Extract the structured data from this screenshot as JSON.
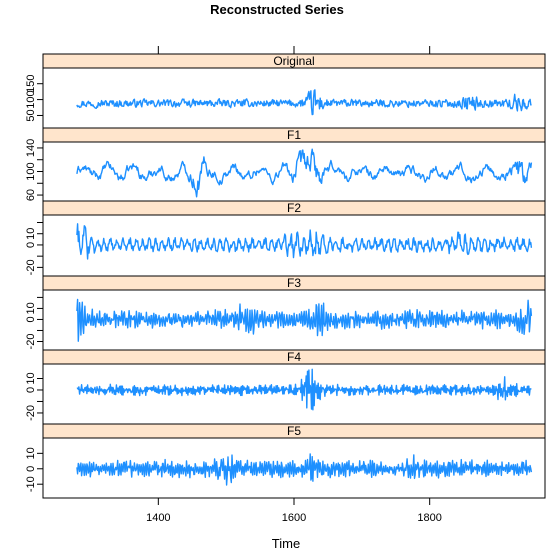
{
  "chart_data": {
    "type": "line",
    "title": "Reconstructed Series",
    "xlabel": "Time",
    "xlim": [
      1230,
      1970
    ],
    "x_range": [
      1280,
      1950
    ],
    "x_ticks": [
      1400,
      1600,
      1800
    ],
    "x_tick_labels": [
      "1400",
      "1600",
      "1800"
    ],
    "grid": false,
    "line_color": "#1e90ff",
    "strip_color": "#ffe5cc",
    "panels": [
      {
        "name": "Original",
        "ylim": [
          20,
          190
        ],
        "y_ticks": [
          50,
          100,
          150
        ],
        "y_tick_labels": [
          "50",
          "100",
          "150"
        ],
        "tick_side": "left",
        "level": 88,
        "noise": 16,
        "bursts": [
          [
            1630,
            45
          ],
          [
            1860,
            22
          ],
          [
            1930,
            25
          ]
        ]
      },
      {
        "name": "F1",
        "ylim": [
          55,
          145
        ],
        "y_ticks": [
          60,
          80,
          100,
          120,
          140
        ],
        "y_tick_labels": [
          "60",
          "",
          "100",
          "",
          "140"
        ],
        "tick_side": "left",
        "level": 98,
        "noise": 18,
        "bursts": [
          [
            1460,
            35
          ],
          [
            1605,
            30
          ],
          [
            1630,
            38
          ],
          [
            1935,
            40
          ]
        ]
      },
      {
        "name": "F2",
        "ylim": [
          -25,
          24
        ],
        "y_ticks": [
          -20,
          -10,
          0,
          10,
          20
        ],
        "y_tick_labels": [
          "-20",
          "",
          "0",
          "10",
          ""
        ],
        "tick_side": "right",
        "level": 0,
        "noise": 7,
        "bursts": [
          [
            1285,
            16
          ],
          [
            1600,
            12
          ],
          [
            1632,
            14
          ],
          [
            1845,
            8
          ]
        ]
      },
      {
        "name": "F3",
        "ylim": [
          -25,
          24
        ],
        "y_ticks": [
          -20,
          -10,
          0,
          10,
          20
        ],
        "y_tick_labels": [
          "-20",
          "",
          "0",
          "10",
          ""
        ],
        "tick_side": "left",
        "level": 0,
        "noise": 9,
        "bursts": [
          [
            1282,
            14
          ],
          [
            1530,
            10
          ],
          [
            1640,
            10
          ],
          [
            1940,
            12
          ]
        ]
      },
      {
        "name": "F4",
        "ylim": [
          -27,
          20
        ],
        "y_ticks": [
          -20,
          -10,
          0,
          10
        ],
        "y_tick_labels": [
          "-20",
          "",
          "0",
          "10"
        ],
        "tick_side": "right",
        "level": 0,
        "noise": 5,
        "bursts": [
          [
            1625,
            16
          ],
          [
            1910,
            8
          ]
        ]
      },
      {
        "name": "F5",
        "ylim": [
          -17,
          18
        ],
        "y_ticks": [
          -10,
          0,
          10
        ],
        "y_tick_labels": [
          "-10",
          "0",
          "10"
        ],
        "tick_side": "left",
        "level": 0,
        "noise": 6,
        "bursts": [
          [
            1500,
            6
          ],
          [
            1620,
            7
          ],
          [
            1780,
            5
          ]
        ]
      }
    ]
  }
}
